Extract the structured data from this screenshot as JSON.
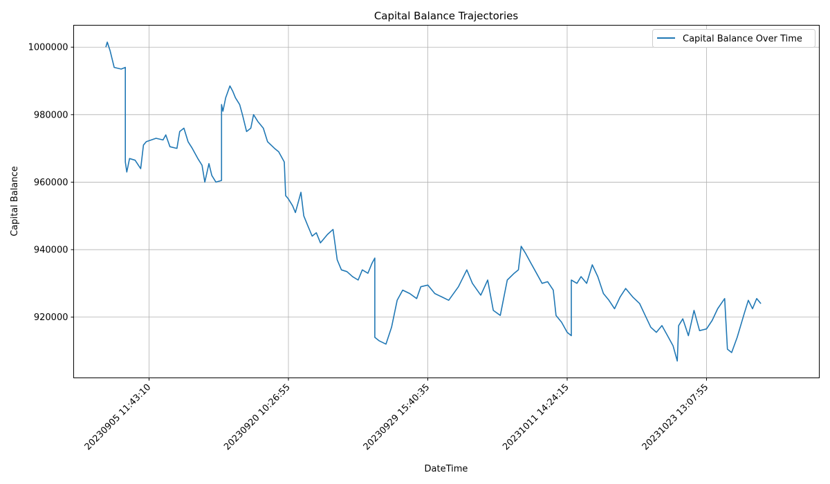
{
  "chart_data": {
    "type": "line",
    "title": "Capital Balance Trajectories",
    "xlabel": "DateTime",
    "ylabel": "Capital Balance",
    "x_tick_labels": [
      "20230905  11:43:10",
      "20230920  10:26:55",
      "20230929  15:40:35",
      "20231011  14:24:15",
      "20231023  13:07:55"
    ],
    "y_tick_values": [
      920000,
      940000,
      960000,
      980000,
      1000000
    ],
    "y_tick_labels": [
      "920000",
      "940000",
      "960000",
      "980000",
      "1000000"
    ],
    "ylim": [
      902000,
      1006500
    ],
    "grid": true,
    "legend_position": "top-right",
    "colors": {
      "line": "#1f77b4",
      "grid": "#b0b0b0",
      "axis": "#000000"
    },
    "series": [
      {
        "name": "Capital Balance Over Time",
        "points": [
          [
            -0.31,
            1000000
          ],
          [
            -0.3,
            1001500
          ],
          [
            -0.28,
            999000
          ],
          [
            -0.25,
            994000
          ],
          [
            -0.2,
            993500
          ],
          [
            -0.17,
            994000
          ],
          [
            -0.17,
            966000
          ],
          [
            -0.16,
            963000
          ],
          [
            -0.14,
            967000
          ],
          [
            -0.1,
            966500
          ],
          [
            -0.06,
            964000
          ],
          [
            -0.04,
            971000
          ],
          [
            -0.02,
            972000
          ],
          [
            0.05,
            973000
          ],
          [
            0.1,
            972500
          ],
          [
            0.12,
            974000
          ],
          [
            0.15,
            970500
          ],
          [
            0.2,
            970000
          ],
          [
            0.22,
            975000
          ],
          [
            0.25,
            976000
          ],
          [
            0.28,
            972000
          ],
          [
            0.31,
            970000
          ],
          [
            0.35,
            967000
          ],
          [
            0.38,
            965000
          ],
          [
            0.4,
            960000
          ],
          [
            0.43,
            965500
          ],
          [
            0.45,
            962000
          ],
          [
            0.48,
            960000
          ],
          [
            0.52,
            960500
          ],
          [
            0.52,
            983000
          ],
          [
            0.53,
            981000
          ],
          [
            0.55,
            985000
          ],
          [
            0.58,
            988500
          ],
          [
            0.6,
            987000
          ],
          [
            0.62,
            985000
          ],
          [
            0.65,
            983000
          ],
          [
            0.67,
            980000
          ],
          [
            0.7,
            975000
          ],
          [
            0.73,
            976000
          ],
          [
            0.75,
            980000
          ],
          [
            0.78,
            978000
          ],
          [
            0.82,
            976000
          ],
          [
            0.85,
            972000
          ],
          [
            0.9,
            970000
          ],
          [
            0.93,
            969000
          ],
          [
            0.97,
            966000
          ],
          [
            0.98,
            956000
          ],
          [
            1.0,
            955000
          ],
          [
            1.03,
            953000
          ],
          [
            1.05,
            951000
          ],
          [
            1.09,
            957000
          ],
          [
            1.11,
            950000
          ],
          [
            1.14,
            947000
          ],
          [
            1.17,
            944000
          ],
          [
            1.2,
            945000
          ],
          [
            1.23,
            942000
          ],
          [
            1.28,
            944500
          ],
          [
            1.32,
            946000
          ],
          [
            1.35,
            937000
          ],
          [
            1.38,
            934000
          ],
          [
            1.42,
            933500
          ],
          [
            1.46,
            932000
          ],
          [
            1.5,
            931000
          ],
          [
            1.53,
            934000
          ],
          [
            1.57,
            933000
          ],
          [
            1.6,
            936000
          ],
          [
            1.62,
            937500
          ],
          [
            1.62,
            914000
          ],
          [
            1.65,
            913000
          ],
          [
            1.7,
            912000
          ],
          [
            1.74,
            917000
          ],
          [
            1.78,
            925000
          ],
          [
            1.82,
            928000
          ],
          [
            1.87,
            927000
          ],
          [
            1.92,
            925500
          ],
          [
            1.95,
            929000
          ],
          [
            2.0,
            929500
          ],
          [
            2.05,
            927000
          ],
          [
            2.1,
            926000
          ],
          [
            2.15,
            925000
          ],
          [
            2.22,
            929000
          ],
          [
            2.28,
            934000
          ],
          [
            2.32,
            930000
          ],
          [
            2.38,
            926500
          ],
          [
            2.43,
            931000
          ],
          [
            2.47,
            922000
          ],
          [
            2.52,
            920500
          ],
          [
            2.57,
            931000
          ],
          [
            2.62,
            933000
          ],
          [
            2.65,
            934000
          ],
          [
            2.67,
            941000
          ],
          [
            2.7,
            939000
          ],
          [
            2.74,
            936000
          ],
          [
            2.78,
            933000
          ],
          [
            2.82,
            930000
          ],
          [
            2.86,
            930500
          ],
          [
            2.9,
            928000
          ],
          [
            2.92,
            920500
          ],
          [
            2.96,
            918500
          ],
          [
            3.0,
            915500
          ],
          [
            3.03,
            914500
          ],
          [
            3.03,
            931000
          ],
          [
            3.07,
            930000
          ],
          [
            3.1,
            932000
          ],
          [
            3.14,
            930000
          ],
          [
            3.18,
            935500
          ],
          [
            3.22,
            932000
          ],
          [
            3.26,
            927000
          ],
          [
            3.3,
            925000
          ],
          [
            3.34,
            922500
          ],
          [
            3.38,
            926000
          ],
          [
            3.42,
            928500
          ],
          [
            3.47,
            926000
          ],
          [
            3.52,
            924000
          ],
          [
            3.56,
            920500
          ],
          [
            3.6,
            917000
          ],
          [
            3.64,
            915500
          ],
          [
            3.68,
            917500
          ],
          [
            3.72,
            914500
          ],
          [
            3.76,
            911500
          ],
          [
            3.79,
            907000
          ],
          [
            3.8,
            917500
          ],
          [
            3.83,
            919500
          ],
          [
            3.87,
            914500
          ],
          [
            3.91,
            922000
          ],
          [
            3.95,
            916000
          ],
          [
            4.0,
            916500
          ],
          [
            4.04,
            919000
          ],
          [
            4.08,
            922500
          ],
          [
            4.13,
            925500
          ],
          [
            4.15,
            910500
          ],
          [
            4.18,
            909500
          ],
          [
            4.22,
            914000
          ],
          [
            4.27,
            921000
          ],
          [
            4.3,
            925000
          ],
          [
            4.33,
            922500
          ],
          [
            4.36,
            925500
          ],
          [
            4.39,
            924000
          ]
        ]
      }
    ]
  }
}
